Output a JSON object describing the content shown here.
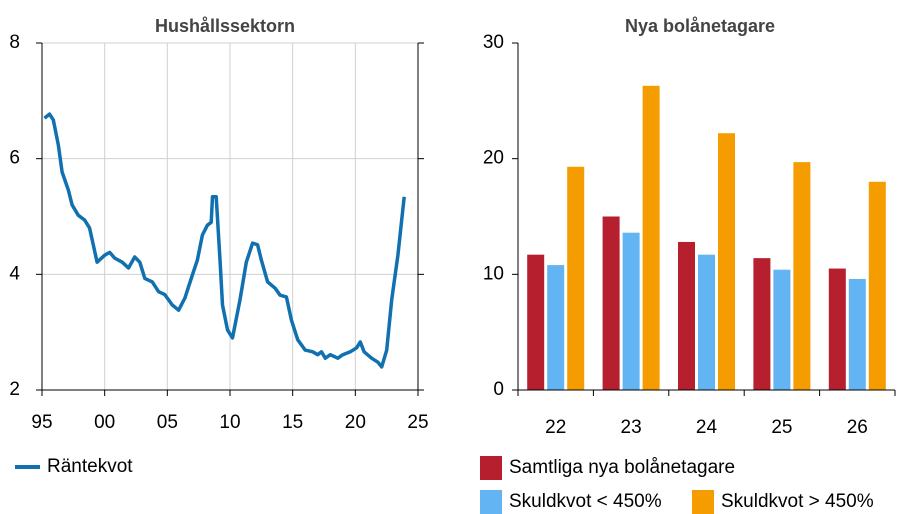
{
  "chart_data": [
    {
      "type": "line",
      "title": "Hushållssektorn",
      "x": [
        1995.2,
        1995.6,
        1995.9,
        1996.3,
        1996.6,
        1997.1,
        1997.4,
        1997.9,
        1998.4,
        1998.8,
        1999.4,
        2000.0,
        2000.4,
        2000.8,
        2001.4,
        2001.9,
        2002.4,
        2002.8,
        2003.2,
        2003.8,
        2004.3,
        2004.8,
        2005.4,
        2005.9,
        2006.4,
        2007.0,
        2007.4,
        2007.8,
        2008.2,
        2008.5,
        2008.6,
        2008.9,
        2009.2,
        2009.4,
        2009.8,
        2010.2,
        2010.8,
        2011.3,
        2011.8,
        2012.2,
        2012.5,
        2013.0,
        2013.6,
        2014.0,
        2014.5,
        2014.9,
        2015.4,
        2016.0,
        2016.6,
        2017.0,
        2017.3,
        2017.6,
        2018.0,
        2018.6,
        2019.0,
        2019.6,
        2020.1,
        2020.4,
        2020.7,
        2021.3,
        2021.8,
        2022.1,
        2022.5,
        2022.9,
        2023.4,
        2023.9
      ],
      "series": [
        {
          "name": "Räntekvot",
          "color": "#1070b0",
          "values": [
            6.7,
            6.77,
            6.67,
            6.24,
            5.77,
            5.46,
            5.2,
            5.02,
            4.94,
            4.8,
            4.21,
            4.33,
            4.38,
            4.28,
            4.21,
            4.11,
            4.3,
            4.21,
            3.93,
            3.87,
            3.7,
            3.65,
            3.47,
            3.38,
            3.59,
            3.99,
            4.25,
            4.68,
            4.85,
            4.9,
            5.34,
            5.34,
            4.25,
            3.47,
            3.04,
            2.9,
            3.56,
            4.21,
            4.54,
            4.51,
            4.25,
            3.87,
            3.76,
            3.64,
            3.61,
            3.21,
            2.87,
            2.69,
            2.66,
            2.61,
            2.66,
            2.55,
            2.61,
            2.55,
            2.61,
            2.66,
            2.73,
            2.83,
            2.66,
            2.55,
            2.48,
            2.4,
            2.69,
            3.56,
            4.33,
            5.34
          ]
        }
      ],
      "xlim": [
        1995,
        2025
      ],
      "xticks": [
        {
          "value": 1995,
          "label": "95"
        },
        {
          "value": 2000,
          "label": "00"
        },
        {
          "value": 2005,
          "label": "05"
        },
        {
          "value": 2010,
          "label": "10"
        },
        {
          "value": 2015,
          "label": "15"
        },
        {
          "value": 2020,
          "label": "20"
        },
        {
          "value": 2025,
          "label": "25"
        }
      ],
      "ylim": [
        2,
        8
      ],
      "yticks": [
        2,
        4,
        6,
        8
      ],
      "grid": true,
      "legend": "bottom-left"
    },
    {
      "type": "bar",
      "title": "Nya bolånetagare",
      "categories": [
        "22",
        "23",
        "24",
        "25",
        "26"
      ],
      "series": [
        {
          "name": "Samtliga nya bolånetagare",
          "color": "#b61f2e",
          "values": [
            11.7,
            15.0,
            12.8,
            11.4,
            10.5
          ]
        },
        {
          "name": "Skuldkvot < 450%",
          "color": "#62b5f2",
          "values": [
            10.8,
            13.6,
            11.7,
            10.4,
            9.6
          ]
        },
        {
          "name": "Skuldkvot > 450%",
          "color": "#f59c00",
          "values": [
            19.3,
            26.3,
            22.2,
            19.7,
            18.0
          ]
        }
      ],
      "ylim": [
        0,
        30
      ],
      "yticks": [
        0,
        10,
        20,
        30
      ],
      "grid": false,
      "legend": "bottom"
    }
  ]
}
